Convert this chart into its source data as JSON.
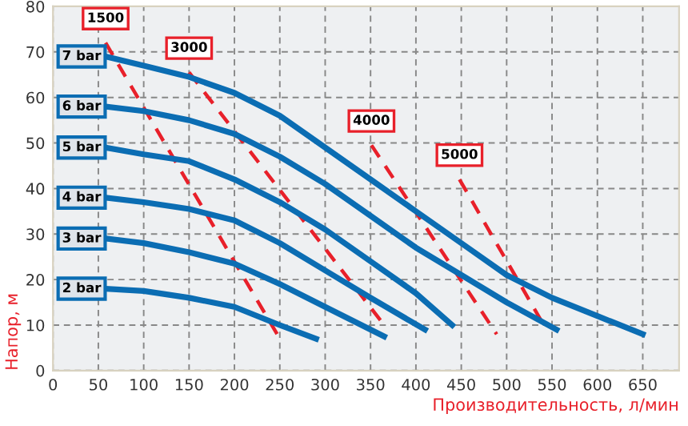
{
  "chart_data": {
    "type": "line",
    "xlabel": "Производительность, л/мин",
    "ylabel": "Напор, м",
    "xlim": [
      0,
      690
    ],
    "ylim": [
      0,
      80
    ],
    "xticks": [
      0,
      50,
      100,
      150,
      200,
      250,
      300,
      350,
      400,
      450,
      500,
      550,
      600,
      650
    ],
    "yticks": [
      0,
      10,
      20,
      30,
      40,
      50,
      60,
      70,
      80
    ],
    "grid": true,
    "legend": false,
    "marker": "none",
    "series": [
      {
        "name": "7 bar",
        "color": "#0b6db3",
        "line_style": "solid",
        "x": [
          58,
          100,
          150,
          200,
          250,
          300,
          350,
          400,
          450,
          500,
          550,
          600,
          650
        ],
        "values": [
          69,
          67,
          64.5,
          61,
          56,
          49,
          42,
          35,
          28,
          21,
          16,
          12,
          8
        ]
      },
      {
        "name": "6 bar",
        "color": "#0b6db3",
        "line_style": "solid",
        "x": [
          58,
          100,
          150,
          200,
          250,
          300,
          350,
          400,
          450,
          500,
          555
        ],
        "values": [
          58,
          57,
          55,
          52,
          47,
          41,
          34,
          27,
          21,
          15,
          9
        ]
      },
      {
        "name": "5 bar",
        "color": "#0b6db3",
        "line_style": "solid",
        "x": [
          58,
          100,
          150,
          200,
          250,
          300,
          350,
          400,
          440
        ],
        "values": [
          49,
          47.5,
          46,
          42,
          37,
          31,
          24,
          17,
          10
        ]
      },
      {
        "name": "4 bar",
        "color": "#0b6db3",
        "line_style": "solid",
        "x": [
          58,
          100,
          150,
          200,
          250,
          300,
          350,
          410
        ],
        "values": [
          38,
          37,
          35.5,
          33,
          28,
          22,
          16,
          9
        ]
      },
      {
        "name": "3 bar",
        "color": "#0b6db3",
        "line_style": "solid",
        "x": [
          58,
          100,
          150,
          200,
          250,
          300,
          365
        ],
        "values": [
          29,
          28,
          26,
          23.5,
          19,
          14,
          7.5
        ]
      },
      {
        "name": "2 bar",
        "color": "#0b6db3",
        "line_style": "solid",
        "x": [
          58,
          100,
          150,
          200,
          250,
          290
        ],
        "values": [
          18,
          17.5,
          16,
          14,
          10,
          7
        ]
      },
      {
        "name": "1500",
        "color": "#e8202a",
        "line_style": "dashed",
        "x": [
          58,
          250
        ],
        "values": [
          72,
          7
        ]
      },
      {
        "name": "3000",
        "color": "#e8202a",
        "line_style": "dashed",
        "x": [
          150,
          365
        ],
        "values": [
          65.5,
          10
        ]
      },
      {
        "name": "4000",
        "color": "#e8202a",
        "line_style": "dashed",
        "x": [
          351,
          489
        ],
        "values": [
          49.5,
          8
        ]
      },
      {
        "name": "5000",
        "color": "#e8202a",
        "line_style": "dashed",
        "x": [
          448,
          538
        ],
        "values": [
          42,
          11
        ]
      }
    ]
  }
}
